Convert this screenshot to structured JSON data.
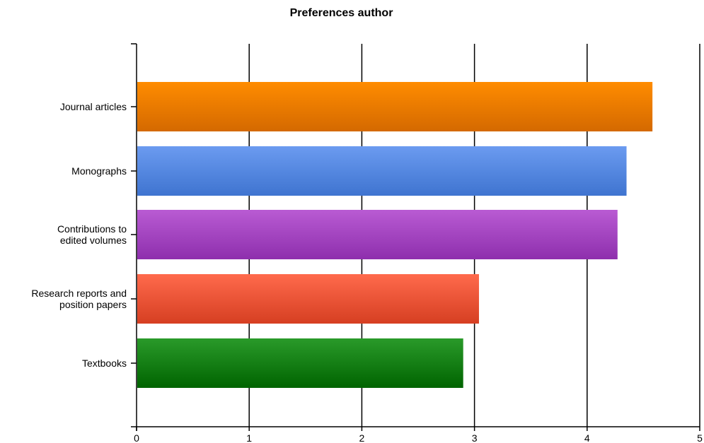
{
  "chart_data": {
    "type": "bar",
    "orientation": "horizontal",
    "title": "Preferences author",
    "xlabel": "",
    "ylabel": "",
    "xlim": [
      0,
      5
    ],
    "x_ticks": [
      "0",
      "1",
      "2",
      "3",
      "4",
      "5"
    ],
    "grid": true,
    "legend": "none",
    "categories": [
      "Journal articles",
      "Monographs",
      "Contributions to edited volumes",
      "Research reports and position papers",
      "Textbooks"
    ],
    "category_label_lines": [
      [
        "Journal articles"
      ],
      [
        "Monographs"
      ],
      [
        "Contributions to",
        "edited volumes"
      ],
      [
        "Research reports and",
        "position papers"
      ],
      [
        "Textbooks"
      ]
    ],
    "values": [
      4.58,
      4.35,
      4.27,
      3.04,
      2.9
    ],
    "colors": [
      {
        "top": "#ff8c00",
        "bottom": "#d46900"
      },
      {
        "top": "#6b9bf0",
        "bottom": "#3f74d0"
      },
      {
        "top": "#b95bd3",
        "bottom": "#8e2fad"
      },
      {
        "top": "#ff6a4c",
        "bottom": "#d63f22"
      },
      {
        "top": "#2a9a2a",
        "bottom": "#006400"
      }
    ]
  }
}
